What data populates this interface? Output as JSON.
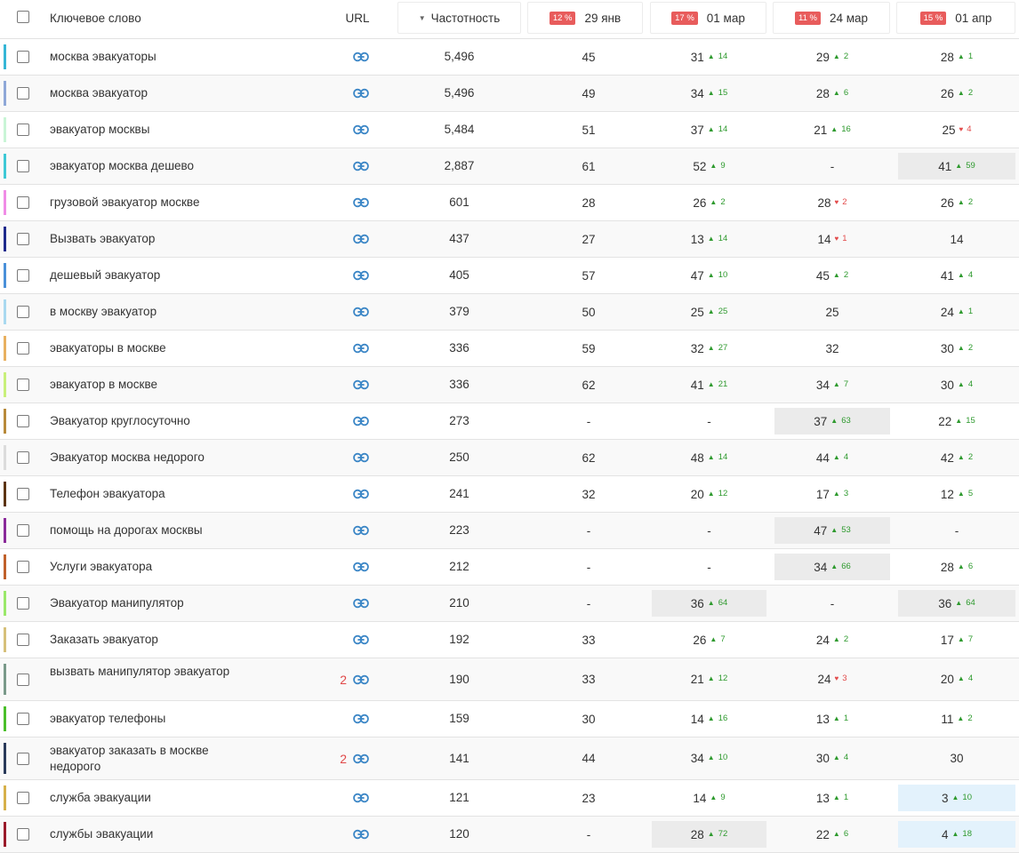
{
  "header": {
    "keyword": "Ключевое слово",
    "url": "URL",
    "frequency": "Частотность",
    "sort_glyph": "▼",
    "dates": [
      {
        "badge": "12 %",
        "label": "29 янв"
      },
      {
        "badge": "17 %",
        "label": "01 мар"
      },
      {
        "badge": "11 %",
        "label": "24 мар"
      },
      {
        "badge": "15 %",
        "label": "01 апр"
      }
    ]
  },
  "colors": {
    "up": "#2e9a2e",
    "down": "#e24a4a",
    "link": "#3b86c6",
    "badge": "#e85c5c"
  },
  "rows": [
    {
      "keyword": "москва эвакуаторы",
      "color": "#35b6d6",
      "urls": "",
      "freq": "5,496",
      "c0": {
        "p": "45"
      },
      "c1": {
        "p": "31",
        "d": "14",
        "t": "up"
      },
      "c2": {
        "p": "29",
        "d": "2",
        "t": "up"
      },
      "c3": {
        "p": "28",
        "d": "1",
        "t": "up"
      }
    },
    {
      "keyword": "москва эвакуатор",
      "color": "#8fa8d8",
      "urls": "",
      "freq": "5,496",
      "c0": {
        "p": "49"
      },
      "c1": {
        "p": "34",
        "d": "15",
        "t": "up"
      },
      "c2": {
        "p": "28",
        "d": "6",
        "t": "up"
      },
      "c3": {
        "p": "26",
        "d": "2",
        "t": "up"
      }
    },
    {
      "keyword": "эвакуатор москвы",
      "color": "#c9f5d6",
      "urls": "",
      "freq": "5,484",
      "c0": {
        "p": "51"
      },
      "c1": {
        "p": "37",
        "d": "14",
        "t": "up"
      },
      "c2": {
        "p": "21",
        "d": "16",
        "t": "up"
      },
      "c3": {
        "p": "25",
        "d": "4",
        "t": "down"
      }
    },
    {
      "keyword": "эвакуатор москва дешево",
      "color": "#3ec9d6",
      "urls": "",
      "freq": "2,887",
      "c0": {
        "p": "61"
      },
      "c1": {
        "p": "52",
        "d": "9",
        "t": "up"
      },
      "c2": {
        "p": "-"
      },
      "c3": {
        "p": "41",
        "d": "59",
        "t": "up",
        "hl": "grey"
      }
    },
    {
      "keyword": "грузовой эвакуатор москве",
      "color": "#f08ce6",
      "urls": "",
      "freq": "601",
      "c0": {
        "p": "28"
      },
      "c1": {
        "p": "26",
        "d": "2",
        "t": "up"
      },
      "c2": {
        "p": "28",
        "d": "2",
        "t": "down"
      },
      "c3": {
        "p": "26",
        "d": "2",
        "t": "up"
      }
    },
    {
      "keyword": "Вызвать эвакуатор",
      "color": "#1e2a8c",
      "urls": "",
      "freq": "437",
      "c0": {
        "p": "27"
      },
      "c1": {
        "p": "13",
        "d": "14",
        "t": "up"
      },
      "c2": {
        "p": "14",
        "d": "1",
        "t": "down"
      },
      "c3": {
        "p": "14"
      }
    },
    {
      "keyword": "дешевый эвакуатор",
      "color": "#4a90d9",
      "urls": "",
      "freq": "405",
      "c0": {
        "p": "57"
      },
      "c1": {
        "p": "47",
        "d": "10",
        "t": "up"
      },
      "c2": {
        "p": "45",
        "d": "2",
        "t": "up"
      },
      "c3": {
        "p": "41",
        "d": "4",
        "t": "up"
      }
    },
    {
      "keyword": "в москву эвакуатор",
      "color": "#a9d9f0",
      "urls": "",
      "freq": "379",
      "c0": {
        "p": "50"
      },
      "c1": {
        "p": "25",
        "d": "25",
        "t": "up"
      },
      "c2": {
        "p": "25"
      },
      "c3": {
        "p": "24",
        "d": "1",
        "t": "up"
      }
    },
    {
      "keyword": "эвакуаторы в москве",
      "color": "#e8b060",
      "urls": "",
      "freq": "336",
      "c0": {
        "p": "59"
      },
      "c1": {
        "p": "32",
        "d": "27",
        "t": "up"
      },
      "c2": {
        "p": "32"
      },
      "c3": {
        "p": "30",
        "d": "2",
        "t": "up"
      }
    },
    {
      "keyword": "эвакуатор в москве",
      "color": "#c8f07a",
      "urls": "",
      "freq": "336",
      "c0": {
        "p": "62"
      },
      "c1": {
        "p": "41",
        "d": "21",
        "t": "up"
      },
      "c2": {
        "p": "34",
        "d": "7",
        "t": "up"
      },
      "c3": {
        "p": "30",
        "d": "4",
        "t": "up"
      }
    },
    {
      "keyword": "Эвакуатор круглосуточно",
      "color": "#b88a3a",
      "urls": "",
      "freq": "273",
      "c0": {
        "p": "-"
      },
      "c1": {
        "p": "-"
      },
      "c2": {
        "p": "37",
        "d": "63",
        "t": "up",
        "hl": "grey"
      },
      "c3": {
        "p": "22",
        "d": "15",
        "t": "up"
      }
    },
    {
      "keyword": "Эвакуатор москва недорого",
      "color": "#dcdcdc",
      "urls": "",
      "freq": "250",
      "c0": {
        "p": "62"
      },
      "c1": {
        "p": "48",
        "d": "14",
        "t": "up"
      },
      "c2": {
        "p": "44",
        "d": "4",
        "t": "up"
      },
      "c3": {
        "p": "42",
        "d": "2",
        "t": "up"
      }
    },
    {
      "keyword": "Телефон эвакуатора",
      "color": "#5c3412",
      "urls": "",
      "freq": "241",
      "c0": {
        "p": "32"
      },
      "c1": {
        "p": "20",
        "d": "12",
        "t": "up"
      },
      "c2": {
        "p": "17",
        "d": "3",
        "t": "up"
      },
      "c3": {
        "p": "12",
        "d": "5",
        "t": "up"
      }
    },
    {
      "keyword": "помощь на дорогах москвы",
      "color": "#8a2a9a",
      "urls": "",
      "freq": "223",
      "c0": {
        "p": "-"
      },
      "c1": {
        "p": "-"
      },
      "c2": {
        "p": "47",
        "d": "53",
        "t": "up",
        "hl": "grey"
      },
      "c3": {
        "p": "-"
      }
    },
    {
      "keyword": "Услуги эвакуатора",
      "color": "#c0602a",
      "urls": "",
      "freq": "212",
      "c0": {
        "p": "-"
      },
      "c1": {
        "p": "-"
      },
      "c2": {
        "p": "34",
        "d": "66",
        "t": "up",
        "hl": "grey"
      },
      "c3": {
        "p": "28",
        "d": "6",
        "t": "up"
      }
    },
    {
      "keyword": "Эвакуатор манипулятор",
      "color": "#9ae86a",
      "urls": "",
      "freq": "210",
      "c0": {
        "p": "-"
      },
      "c1": {
        "p": "36",
        "d": "64",
        "t": "up",
        "hl": "grey"
      },
      "c2": {
        "p": "-"
      },
      "c3": {
        "p": "36",
        "d": "64",
        "t": "up",
        "hl": "grey"
      }
    },
    {
      "keyword": "Заказать эвакуатор",
      "color": "#d6c07a",
      "urls": "",
      "freq": "192",
      "c0": {
        "p": "33"
      },
      "c1": {
        "p": "26",
        "d": "7",
        "t": "up"
      },
      "c2": {
        "p": "24",
        "d": "2",
        "t": "up"
      },
      "c3": {
        "p": "17",
        "d": "7",
        "t": "up"
      }
    },
    {
      "keyword": "вызвать манипулятор эвакуатор",
      "color": "#7a9a8a",
      "urls": "2",
      "freq": "190",
      "c0": {
        "p": "33"
      },
      "c1": {
        "p": "21",
        "d": "12",
        "t": "up"
      },
      "c2": {
        "p": "24",
        "d": "3",
        "t": "down"
      },
      "c3": {
        "p": "20",
        "d": "4",
        "t": "up"
      }
    },
    {
      "keyword": "эвакуатор телефоны",
      "color": "#4abf2a",
      "urls": "",
      "freq": "159",
      "c0": {
        "p": "30"
      },
      "c1": {
        "p": "14",
        "d": "16",
        "t": "up"
      },
      "c2": {
        "p": "13",
        "d": "1",
        "t": "up"
      },
      "c3": {
        "p": "11",
        "d": "2",
        "t": "up"
      }
    },
    {
      "keyword": "эвакуатор заказать в москве недорого",
      "color": "#2a3a5a",
      "urls": "2",
      "freq": "141",
      "c0": {
        "p": "44"
      },
      "c1": {
        "p": "34",
        "d": "10",
        "t": "up"
      },
      "c2": {
        "p": "30",
        "d": "4",
        "t": "up"
      },
      "c3": {
        "p": "30"
      }
    },
    {
      "keyword": "служба эвакуации",
      "color": "#d6b04a",
      "urls": "",
      "freq": "121",
      "c0": {
        "p": "23"
      },
      "c1": {
        "p": "14",
        "d": "9",
        "t": "up"
      },
      "c2": {
        "p": "13",
        "d": "1",
        "t": "up"
      },
      "c3": {
        "p": "3",
        "d": "10",
        "t": "up",
        "hl": "blue"
      }
    },
    {
      "keyword": "службы эвакуации",
      "color": "#9a1a2a",
      "urls": "",
      "freq": "120",
      "c0": {
        "p": "-"
      },
      "c1": {
        "p": "28",
        "d": "72",
        "t": "up",
        "hl": "grey"
      },
      "c2": {
        "p": "22",
        "d": "6",
        "t": "up"
      },
      "c3": {
        "p": "4",
        "d": "18",
        "t": "up",
        "hl": "blue"
      }
    }
  ]
}
